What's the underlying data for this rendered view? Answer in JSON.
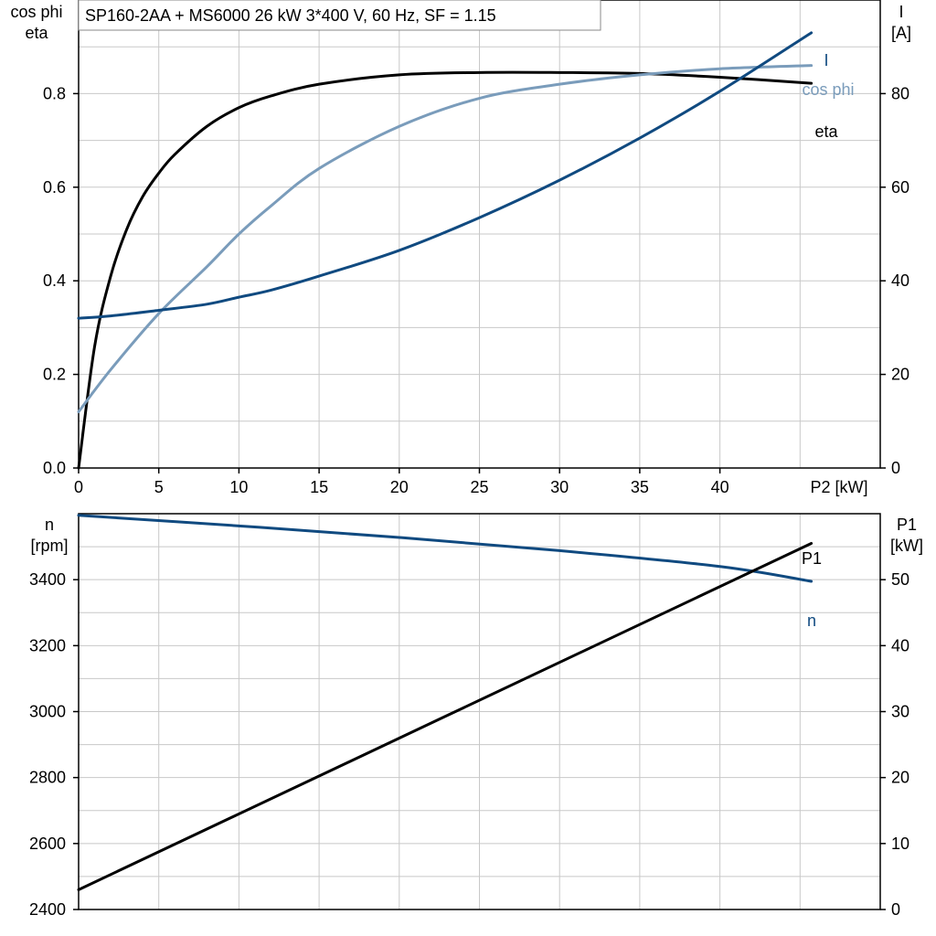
{
  "title": "SP160-2AA + MS6000   26 kW   3*400 V, 60 Hz, SF = 1.15",
  "colors": {
    "eta": "#000000",
    "cos_phi": "#7a9cbb",
    "I": "#104a80",
    "n": "#104a80",
    "P1": "#000000"
  },
  "chart_data": [
    {
      "type": "line",
      "xlabel": "P2 [kW]",
      "xlim": [
        0,
        50
      ],
      "x_ticks": [
        0,
        5,
        10,
        15,
        20,
        25,
        30,
        35,
        40
      ],
      "ylabel_left": [
        "cos phi",
        "eta"
      ],
      "ylim_left": [
        0,
        1.0
      ],
      "y_ticks_left": [
        0.0,
        0.2,
        0.4,
        0.6,
        0.8
      ],
      "ylabel_right": [
        "I",
        "[A]"
      ],
      "ylim_right": [
        0,
        100
      ],
      "y_ticks_right": [
        0,
        20,
        40,
        60,
        80
      ],
      "grid": true,
      "series": [
        {
          "name": "eta",
          "axis": "left",
          "color": "#000000",
          "x": [
            0,
            1,
            2,
            3,
            4,
            5,
            6,
            8,
            10,
            12,
            15,
            20,
            25,
            30,
            35,
            40,
            45.7
          ],
          "y": [
            0.0,
            0.26,
            0.41,
            0.51,
            0.58,
            0.63,
            0.67,
            0.73,
            0.77,
            0.795,
            0.82,
            0.84,
            0.845,
            0.845,
            0.843,
            0.835,
            0.822
          ]
        },
        {
          "name": "cos phi",
          "axis": "left",
          "color": "#7a9cbb",
          "x": [
            0,
            2,
            5,
            8,
            10,
            12,
            15,
            20,
            25,
            30,
            35,
            40,
            45.7
          ],
          "y": [
            0.12,
            0.21,
            0.33,
            0.43,
            0.5,
            0.56,
            0.64,
            0.73,
            0.79,
            0.82,
            0.84,
            0.853,
            0.86
          ]
        },
        {
          "name": "I",
          "axis": "right",
          "color": "#104a80",
          "x": [
            0,
            2,
            5,
            8,
            10,
            12,
            15,
            20,
            25,
            30,
            35,
            40,
            45.7
          ],
          "y": [
            32,
            32.5,
            33.7,
            35,
            36.5,
            38,
            41,
            46.5,
            53.5,
            61.5,
            70.5,
            80.5,
            93
          ]
        }
      ]
    },
    {
      "type": "line",
      "xlim": [
        0,
        50
      ],
      "ylabel_left": [
        "n",
        "[rpm]"
      ],
      "ylim_left": [
        2400,
        3600
      ],
      "y_ticks_left": [
        2400,
        2600,
        2800,
        3000,
        3200,
        3400
      ],
      "ylabel_right": [
        "P1",
        "[kW]"
      ],
      "ylim_right": [
        0,
        60
      ],
      "y_ticks_right": [
        0,
        10,
        20,
        30,
        40,
        50
      ],
      "grid": true,
      "series": [
        {
          "name": "n",
          "axis": "left",
          "color": "#104a80",
          "x": [
            0,
            10,
            20,
            30,
            40,
            45.7
          ],
          "y": [
            3595,
            3563,
            3528,
            3488,
            3440,
            3395
          ]
        },
        {
          "name": "P1",
          "axis": "right",
          "color": "#000000",
          "x": [
            0,
            45.7
          ],
          "y": [
            3,
            55.5
          ]
        }
      ]
    }
  ]
}
